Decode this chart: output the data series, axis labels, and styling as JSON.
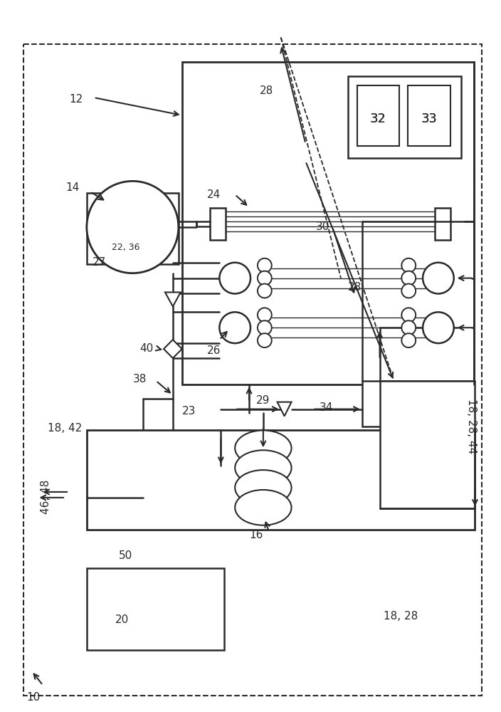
{
  "bg_color": "#ffffff",
  "line_color": "#2a2a2a",
  "fig_width": 7.04,
  "fig_height": 10.0,
  "dpi": 100
}
